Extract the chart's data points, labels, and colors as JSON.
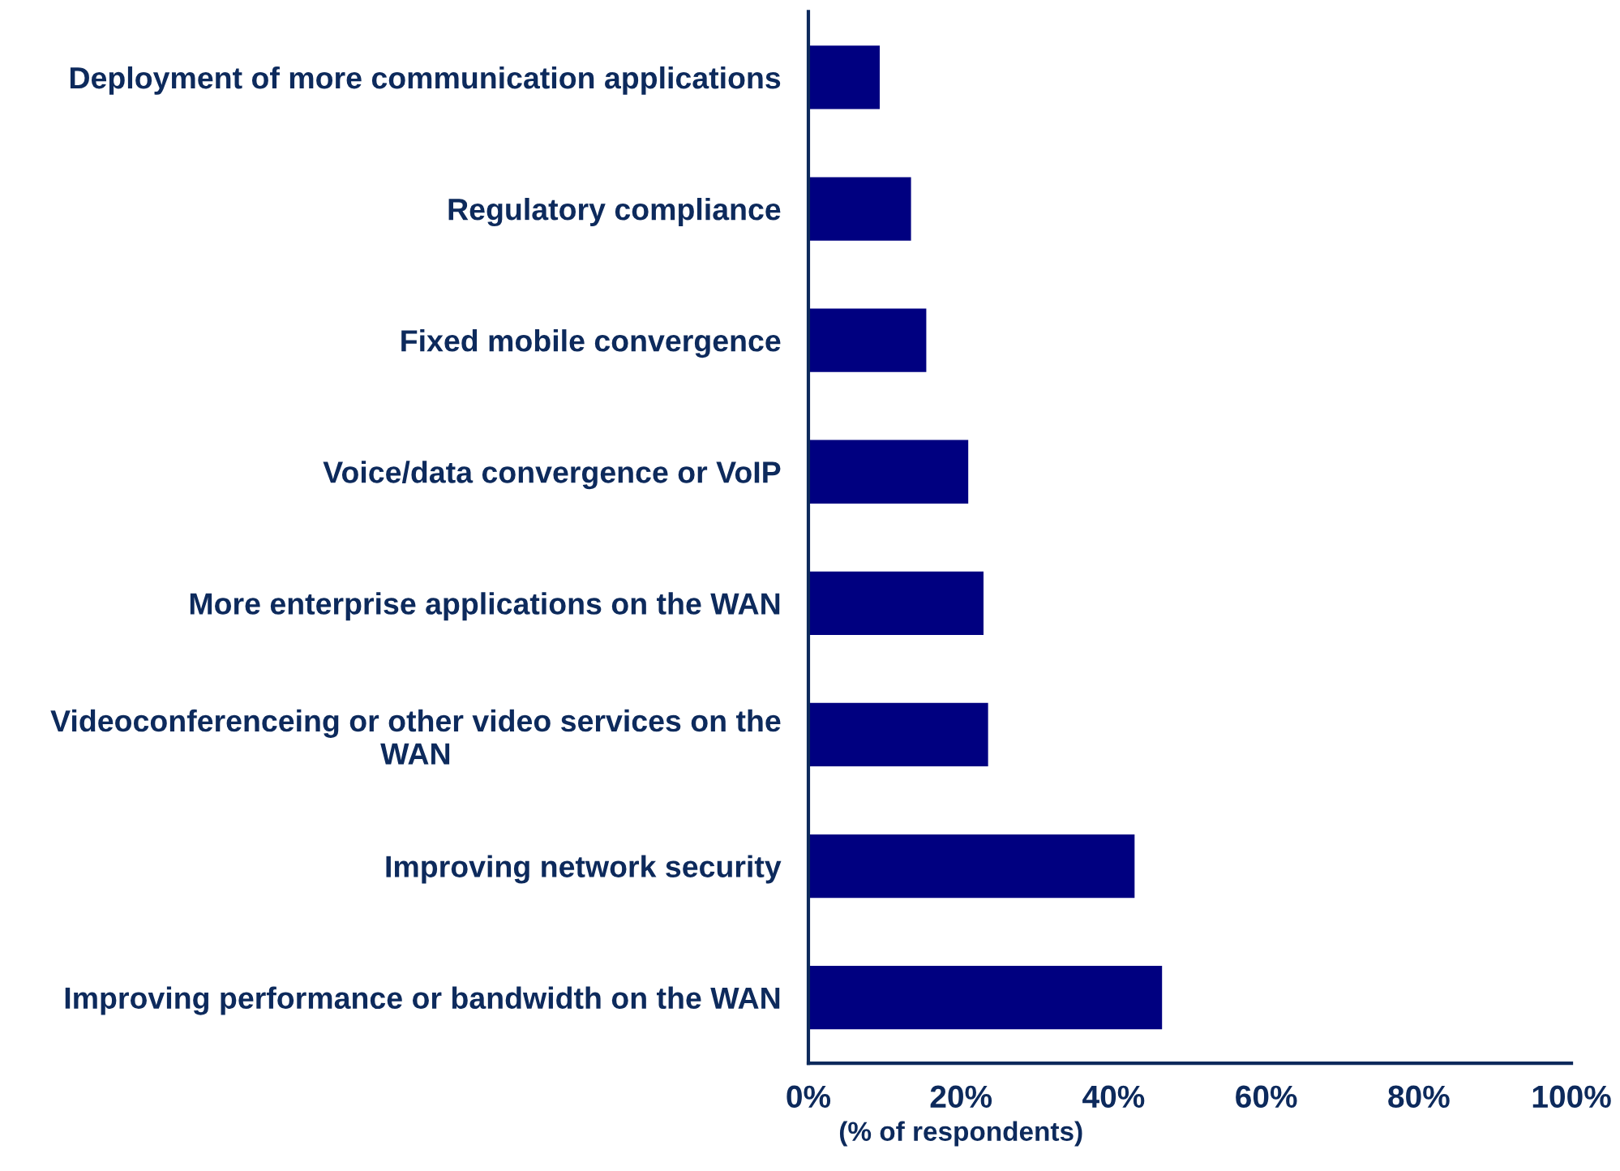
{
  "chart_data": {
    "type": "bar",
    "orientation": "horizontal",
    "xlabel": "(% of respondents)",
    "categories": [
      "Deployment of more communication applications",
      "Regulatory compliance",
      "Fixed mobile convergence",
      "Voice/data convergence or VoIP",
      "More enterprise applications on the WAN",
      "Videoconferenceing or other video services on the WAN",
      "Improving network security",
      "Improving performance or bandwidth on the WAN"
    ],
    "values": [
      9.5,
      13.6,
      15.6,
      21.1,
      23.1,
      23.7,
      42.9,
      46.5
    ],
    "color": "#000080",
    "xlim": [
      0,
      100
    ],
    "xticks": [
      {
        "value": 0,
        "label": "0%"
      },
      {
        "value": 20,
        "label": "20%"
      },
      {
        "value": 40,
        "label": "40%"
      },
      {
        "value": 60,
        "label": "60%"
      },
      {
        "value": 80,
        "label": "80%"
      },
      {
        "value": 100,
        "label": "100%"
      }
    ],
    "grid": false,
    "legend": false
  }
}
